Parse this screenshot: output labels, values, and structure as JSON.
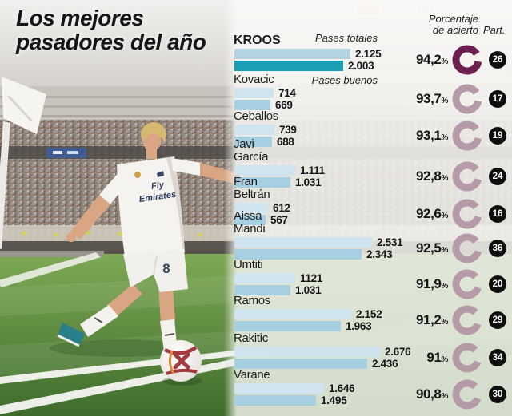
{
  "title": {
    "line1": "Los mejores",
    "line2": "pasadores del año"
  },
  "header": {
    "total_passes_label": "Pases totales",
    "good_passes_label": "Pases buenos",
    "accuracy_line1": "Porcentaje",
    "accuracy_line2": "de acierto",
    "participation": "Part."
  },
  "photo": {
    "jersey_sponsor_line1": "Fly",
    "jersey_sponsor_line2": "Emirates",
    "short_number": "8"
  },
  "colors": {
    "bar_total": "#cfe4ef",
    "bar_good": "#a6cfe1",
    "bar_total_leader": "#b2d3df",
    "bar_good_leader": "#1a9fb5",
    "donut_dark": "#6e2150",
    "donut_light": "#b59ba7",
    "badge_bg": "#0e0e0e",
    "text": "#1a1a1a"
  },
  "chart_data": {
    "type": "bar",
    "title": "Los mejores pasadores del año",
    "series_labels": [
      "Pases totales",
      "Pases buenos"
    ],
    "accuracy_header": "Porcentaje de acierto",
    "participation_header": "Part.",
    "xlabel": "",
    "ylabel": "",
    "players": [
      {
        "name_lines": [
          "KROOS"
        ],
        "leader": true,
        "total": 2125,
        "total_display": "2.125",
        "good": 2003,
        "good_display": "2.003",
        "accuracy": 94.2,
        "accuracy_display": "94,2%",
        "participation": 26
      },
      {
        "name_lines": [
          "Kovacic"
        ],
        "leader": false,
        "total": 714,
        "total_display": "714",
        "good": 669,
        "good_display": "669",
        "accuracy": 93.7,
        "accuracy_display": "93,7%",
        "participation": 17
      },
      {
        "name_lines": [
          "Ceballos"
        ],
        "leader": false,
        "total": 739,
        "total_display": "739",
        "good": 688,
        "good_display": "688",
        "accuracy": 93.1,
        "accuracy_display": "93,1%",
        "participation": 19
      },
      {
        "name_lines": [
          "Javi",
          "García"
        ],
        "leader": false,
        "total": 1111,
        "total_display": "1.111",
        "good": 1031,
        "good_display": "1.031",
        "accuracy": 92.8,
        "accuracy_display": "92,8%",
        "participation": 24
      },
      {
        "name_lines": [
          "Fran",
          "Beltrán"
        ],
        "leader": false,
        "total": 612,
        "total_display": "612",
        "good": 567,
        "good_display": "567",
        "accuracy": 92.6,
        "accuracy_display": "92,6%",
        "participation": 16
      },
      {
        "name_lines": [
          "Aissa",
          "Mandi"
        ],
        "leader": false,
        "total": 2531,
        "total_display": "2.531",
        "good": 2343,
        "good_display": "2.343",
        "accuracy": 92.5,
        "accuracy_display": "92,5%",
        "participation": 36
      },
      {
        "name_lines": [
          "Umtiti"
        ],
        "leader": false,
        "total": 1121,
        "total_display": "1121",
        "good": 1031,
        "good_display": "1.031",
        "accuracy": 91.9,
        "accuracy_display": "91,9%",
        "participation": 20
      },
      {
        "name_lines": [
          "Ramos"
        ],
        "leader": false,
        "total": 2152,
        "total_display": "2.152",
        "good": 1963,
        "good_display": "1.963",
        "accuracy": 91.2,
        "accuracy_display": "91,2%",
        "participation": 29
      },
      {
        "name_lines": [
          "Rakitic"
        ],
        "leader": false,
        "total": 2676,
        "total_display": "2.676",
        "good": 2436,
        "good_display": "2.436",
        "accuracy": 91.0,
        "accuracy_display": "91%",
        "participation": 34
      },
      {
        "name_lines": [
          "Varane"
        ],
        "leader": false,
        "total": 1646,
        "total_display": "1.646",
        "good": 1495,
        "good_display": "1.495",
        "accuracy": 90.8,
        "accuracy_display": "90,8%",
        "participation": 30
      }
    ]
  }
}
